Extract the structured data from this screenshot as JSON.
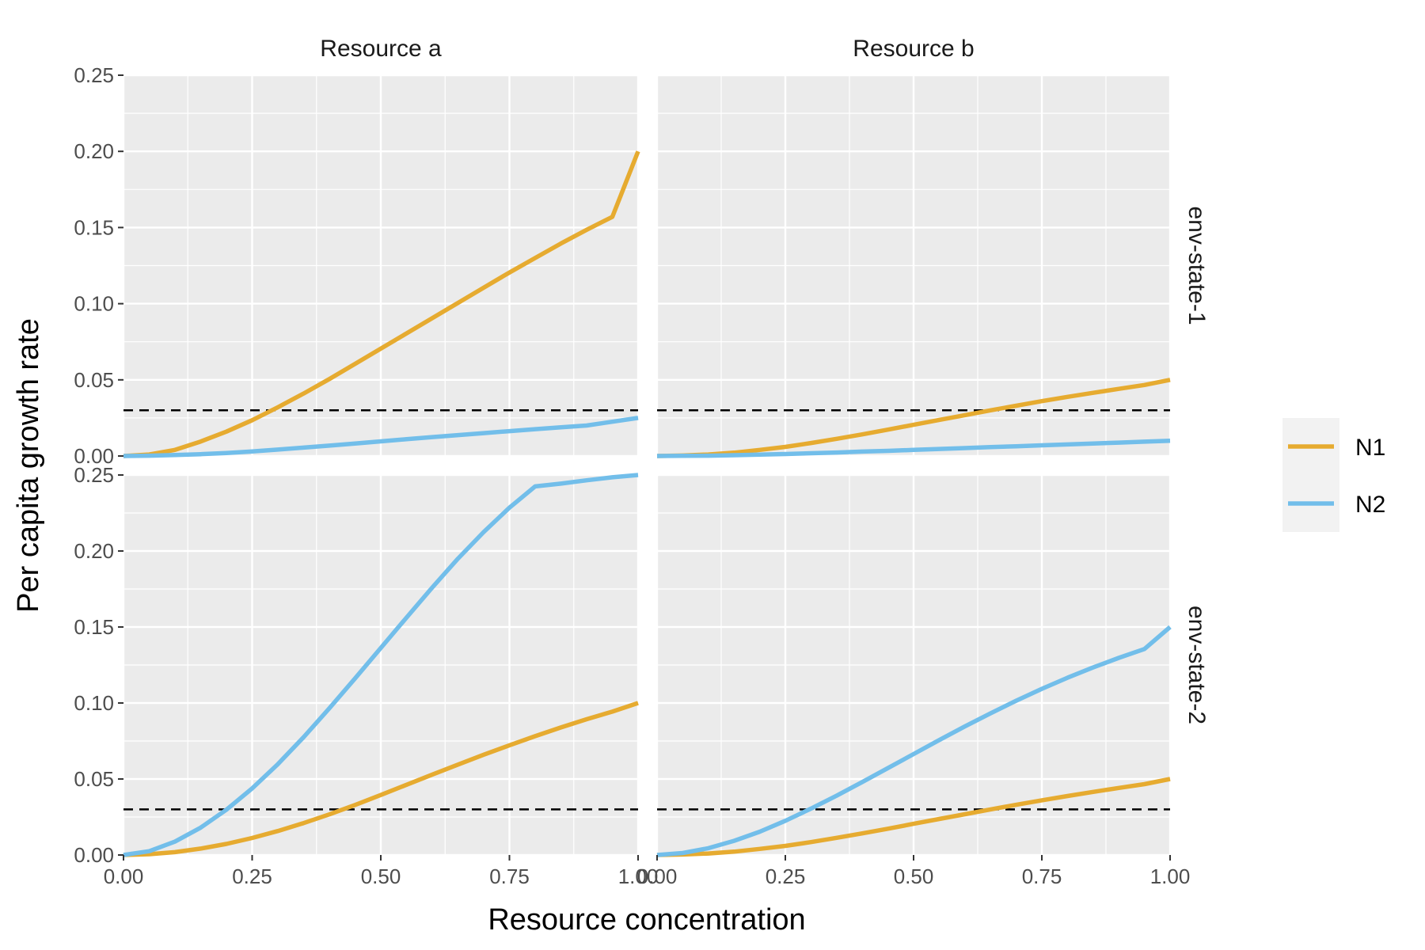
{
  "chart_data": {
    "type": "line",
    "xlabel": "Resource concentration",
    "ylabel": "Per capita growth rate",
    "xlim": [
      0,
      1
    ],
    "ylim": [
      0,
      0.25
    ],
    "x_ticks": [
      0,
      0.25,
      0.5,
      0.75,
      1
    ],
    "x_tick_labels": [
      "0.00",
      "0.25",
      "0.50",
      "0.75",
      "1.00"
    ],
    "y_ticks": [
      0,
      0.05,
      0.1,
      0.15,
      0.2,
      0.25
    ],
    "y_tick_labels": [
      "0.00",
      "0.05",
      "0.10",
      "0.15",
      "0.20",
      "0.25"
    ],
    "grid": true,
    "panel_background": "#ebebeb",
    "grid_color": "#ffffff",
    "column_strips": [
      "Resource a",
      "Resource b"
    ],
    "row_strips": [
      "env-state-1",
      "env-state-2"
    ],
    "legend": {
      "placement": "right",
      "entries": [
        {
          "name": "N1",
          "color": "#E6AB30"
        },
        {
          "name": "N2",
          "color": "#72BEEA"
        }
      ]
    },
    "reference_line": {
      "y": 0.03,
      "style": "dashed",
      "color": "#000000"
    },
    "x": [
      0,
      0.05,
      0.1,
      0.15,
      0.2,
      0.25,
      0.3,
      0.35,
      0.4,
      0.45,
      0.5,
      0.55,
      0.6,
      0.65,
      0.7,
      0.75,
      0.8,
      0.85,
      0.9,
      0.95,
      1
    ],
    "panels": [
      {
        "column": "Resource a",
        "row": "env-state-1",
        "series": [
          {
            "name": "N1",
            "values": [
              0,
              0.001,
              0.004,
              0.0095,
              0.016,
              0.0235,
              0.032,
              0.041,
              0.0505,
              0.0605,
              0.0705,
              0.0805,
              0.0905,
              0.1005,
              0.1105,
              0.1205,
              0.13,
              0.1395,
              0.1485,
              0.157,
              0.2
            ]
          },
          {
            "name": "N2",
            "values": [
              0,
              0.0002,
              0.0006,
              0.0012,
              0.002,
              0.003,
              0.0042,
              0.0055,
              0.0068,
              0.0082,
              0.0096,
              0.011,
              0.0124,
              0.0137,
              0.015,
              0.0163,
              0.0176,
              0.0188,
              0.02,
              0.0225,
              0.025
            ]
          }
        ]
      },
      {
        "column": "Resource b",
        "row": "env-state-1",
        "series": [
          {
            "name": "N1",
            "values": [
              0,
              0.0003,
              0.001,
              0.0022,
              0.004,
              0.006,
              0.0085,
              0.0113,
              0.0142,
              0.0173,
              0.0205,
              0.0237,
              0.0268,
              0.03,
              0.033,
              0.036,
              0.0388,
              0.0415,
              0.0441,
              0.0466,
              0.05
            ]
          },
          {
            "name": "N2",
            "values": [
              0,
              0.0001,
              0.0002,
              0.0005,
              0.0009,
              0.0013,
              0.0018,
              0.0023,
              0.0029,
              0.0034,
              0.004,
              0.0046,
              0.0052,
              0.0058,
              0.0064,
              0.007,
              0.0076,
              0.0082,
              0.0088,
              0.0094,
              0.01
            ]
          }
        ]
      },
      {
        "column": "Resource a",
        "row": "env-state-2",
        "series": [
          {
            "name": "N1",
            "values": [
              0,
              0.0005,
              0.0019,
              0.0042,
              0.0073,
              0.0112,
              0.0158,
              0.021,
              0.0267,
              0.0329,
              0.0395,
              0.0462,
              0.0529,
              0.0595,
              0.066,
              0.0722,
              0.0782,
              0.0839,
              0.0893,
              0.0943,
              0.1
            ]
          },
          {
            "name": "N2",
            "values": [
              0,
              0.0025,
              0.0088,
              0.018,
              0.0298,
              0.0438,
              0.0598,
              0.0775,
              0.0965,
              0.1162,
              0.1362,
              0.1562,
              0.176,
              0.195,
              0.2125,
              0.2285,
              0.2425,
              0.2443,
              0.2465,
              0.2485,
              0.25
            ]
          }
        ]
      },
      {
        "column": "Resource b",
        "row": "env-state-2",
        "series": [
          {
            "name": "N1",
            "values": [
              0,
              0.0003,
              0.001,
              0.0022,
              0.004,
              0.006,
              0.0085,
              0.0113,
              0.0142,
              0.0173,
              0.0205,
              0.0237,
              0.0268,
              0.03,
              0.033,
              0.036,
              0.0388,
              0.0415,
              0.0441,
              0.0466,
              0.05
            ]
          },
          {
            "name": "N2",
            "values": [
              0,
              0.0013,
              0.0045,
              0.0093,
              0.0153,
              0.0225,
              0.0305,
              0.039,
              0.048,
              0.0572,
              0.0664,
              0.0756,
              0.0846,
              0.0932,
              0.1015,
              0.1093,
              0.1166,
              0.1234,
              0.1297,
              0.1355,
              0.15
            ]
          }
        ]
      }
    ]
  }
}
